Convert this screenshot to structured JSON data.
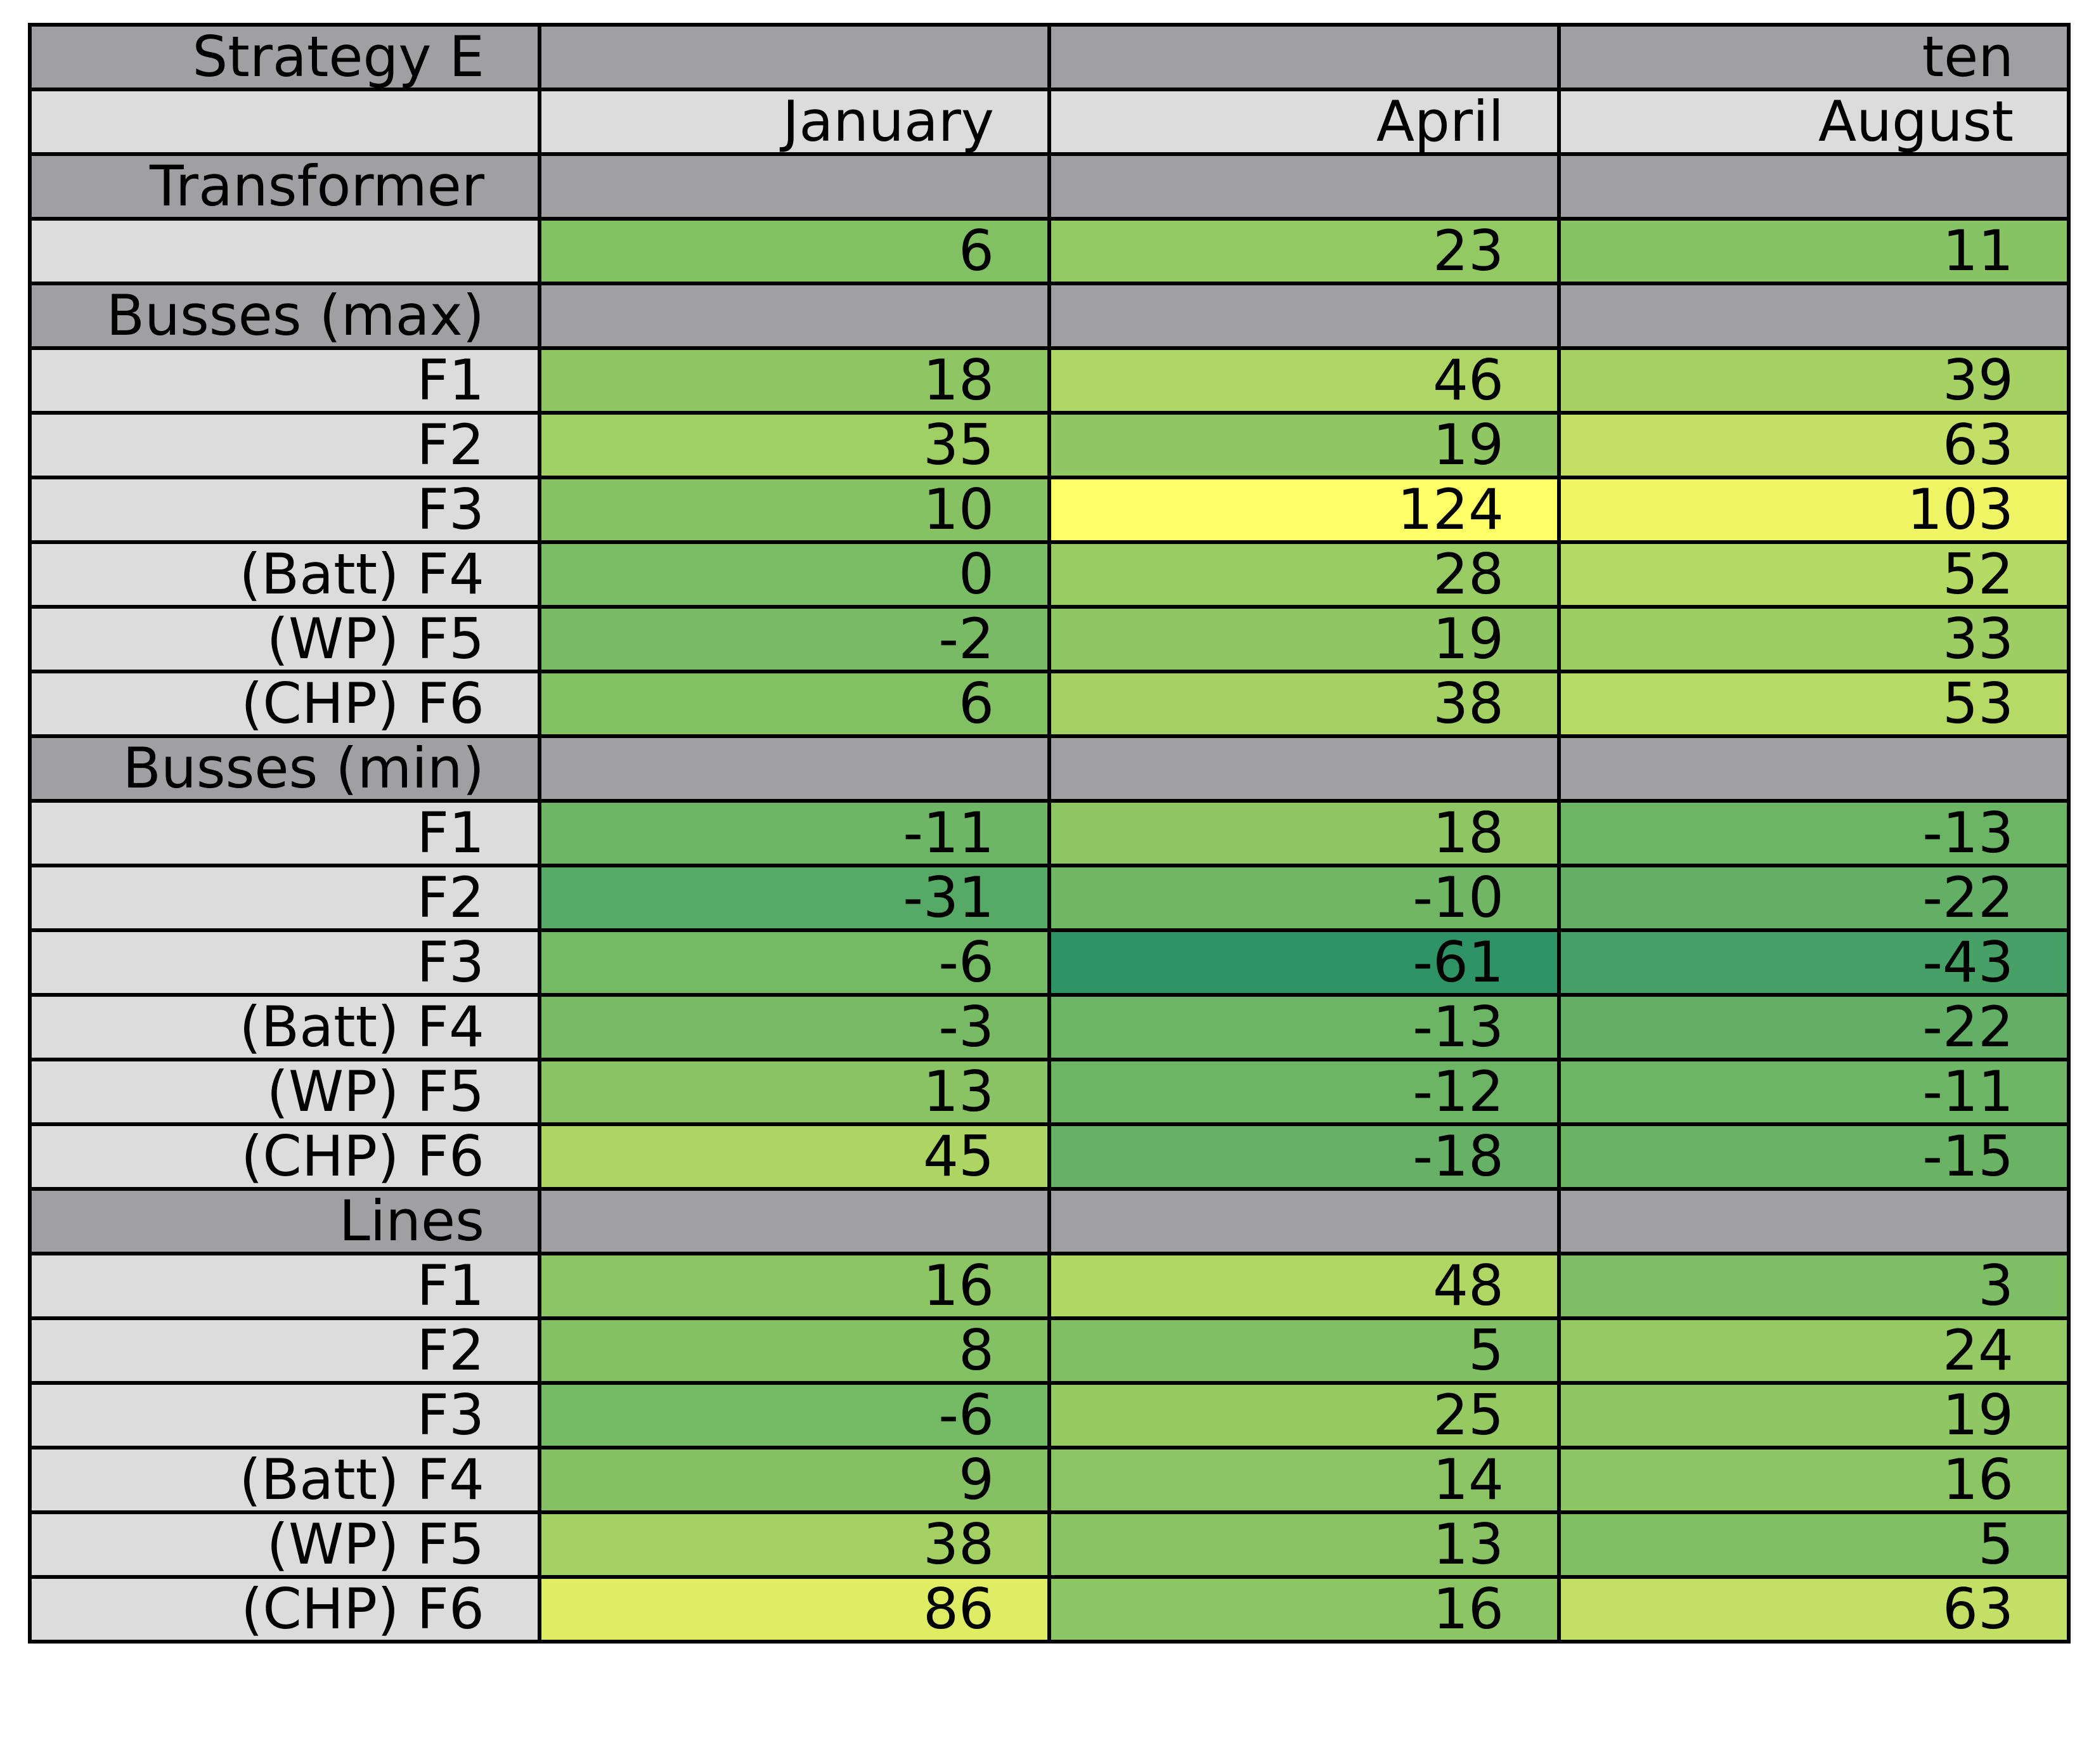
{
  "chart_data": {
    "type": "heatmap",
    "title": "Strategy E",
    "column_group_label": "ten",
    "columns": [
      "January",
      "April",
      "August"
    ],
    "sections": [
      {
        "name": "Transformer",
        "rows": [
          {
            "label": "",
            "values": [
              6,
              23,
              11
            ]
          }
        ]
      },
      {
        "name": "Busses (max)",
        "rows": [
          {
            "label": "F1",
            "values": [
              18,
              46,
              39
            ]
          },
          {
            "label": "F2",
            "values": [
              35,
              19,
              63
            ]
          },
          {
            "label": "F3",
            "values": [
              10,
              124,
              103
            ]
          },
          {
            "label": "(Batt) F4",
            "values": [
              0,
              28,
              52
            ]
          },
          {
            "label": "(WP) F5",
            "values": [
              -2,
              19,
              33
            ]
          },
          {
            "label": "(CHP) F6",
            "values": [
              6,
              38,
              53
            ]
          }
        ]
      },
      {
        "name": "Busses (min)",
        "rows": [
          {
            "label": "F1",
            "values": [
              -11,
              18,
              -13
            ]
          },
          {
            "label": "F2",
            "values": [
              -31,
              -10,
              -22
            ]
          },
          {
            "label": "F3",
            "values": [
              -6,
              -61,
              -43
            ]
          },
          {
            "label": "(Batt) F4",
            "values": [
              -3,
              -13,
              -22
            ]
          },
          {
            "label": "(WP) F5",
            "values": [
              13,
              -12,
              -11
            ]
          },
          {
            "label": "(CHP) F6",
            "values": [
              45,
              -18,
              -15
            ]
          }
        ]
      },
      {
        "name": "Lines",
        "rows": [
          {
            "label": "F1",
            "values": [
              16,
              48,
              3
            ]
          },
          {
            "label": "F2",
            "values": [
              8,
              5,
              24
            ]
          },
          {
            "label": "F3",
            "values": [
              -6,
              25,
              19
            ]
          },
          {
            "label": "(Batt) F4",
            "values": [
              9,
              14,
              16
            ]
          },
          {
            "label": "(WP) F5",
            "values": [
              38,
              13,
              5
            ]
          },
          {
            "label": "(CHP) F6",
            "values": [
              86,
              16,
              63
            ]
          }
        ]
      }
    ],
    "value_range": [
      -61,
      124
    ],
    "colormap": [
      "#2e9365",
      "#58aa66",
      "#7cbd64",
      "#9ccd63",
      "#c1e065",
      "#e8f164",
      "#ffff66"
    ],
    "colors": {
      "header_dark": "#a0a0a2",
      "header_light": "#dcdcdc",
      "border": "#000000",
      "text": "#000000"
    }
  }
}
